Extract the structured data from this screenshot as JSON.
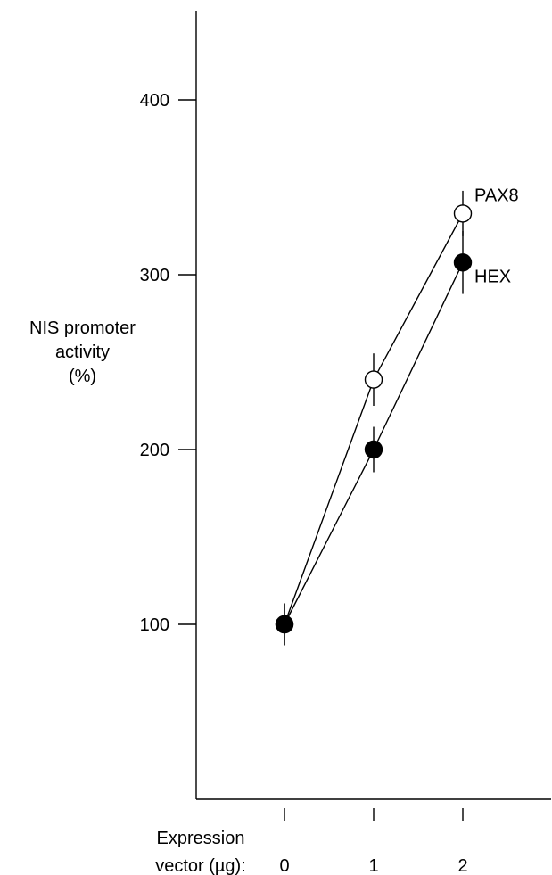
{
  "chart_data": {
    "type": "line",
    "ylabel_lines": [
      "NIS promoter",
      "activity",
      "(%)"
    ],
    "xlabel_lines": [
      "Expression",
      "vector (µg):"
    ],
    "x": [
      0,
      1,
      2
    ],
    "x_tick_labels": [
      "0",
      "1",
      "2"
    ],
    "y_ticks": [
      100,
      200,
      300,
      400
    ],
    "y_tick_labels": [
      "100",
      "200",
      "300",
      "400"
    ],
    "ylim": [
      0,
      450
    ],
    "grid": false,
    "series": [
      {
        "name": "PAX8",
        "marker": "open-circle",
        "color": "#000000",
        "values": [
          100,
          240,
          335
        ],
        "error": [
          12,
          15,
          13
        ]
      },
      {
        "name": "HEX",
        "marker": "filled-circle",
        "color": "#000000",
        "values": [
          100,
          200,
          307
        ],
        "error": [
          12,
          13,
          18
        ]
      }
    ]
  }
}
